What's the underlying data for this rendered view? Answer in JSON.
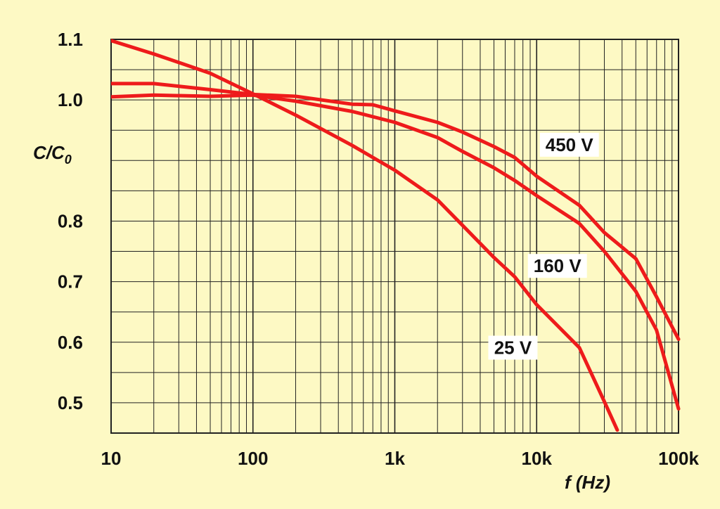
{
  "chart_data": {
    "type": "line",
    "xscale": "log",
    "xlim": [
      10,
      100000
    ],
    "ylim": [
      0.45,
      1.1
    ],
    "grid": true,
    "xlabel": "f (Hz)",
    "ylabel": "C/C",
    "ylabel_subscript": "0",
    "x_ticks": [
      {
        "value": 10,
        "label": "10"
      },
      {
        "value": 100,
        "label": "100"
      },
      {
        "value": 1000,
        "label": "1k"
      },
      {
        "value": 10000,
        "label": "10k"
      },
      {
        "value": 100000,
        "label": "100k"
      }
    ],
    "y_ticks": [
      {
        "value": 1.1,
        "label": "1.1"
      },
      {
        "value": 1.0,
        "label": "1.0"
      },
      {
        "value": 0.8,
        "label": "0.8"
      },
      {
        "value": 0.7,
        "label": "0.7"
      },
      {
        "value": 0.6,
        "label": "0.6"
      },
      {
        "value": 0.5,
        "label": "0.5"
      }
    ],
    "series": [
      {
        "name": "450 V",
        "color": "#ee1b1b",
        "x": [
          10,
          20,
          50,
          100,
          200,
          500,
          700,
          1000,
          2000,
          3000,
          5000,
          7000,
          10000,
          20000,
          30000,
          50000,
          70000,
          100000
        ],
        "y": [
          1.027,
          1.027,
          1.017,
          1.009,
          1.006,
          0.993,
          0.992,
          0.982,
          0.963,
          0.947,
          0.923,
          0.905,
          0.874,
          0.826,
          0.781,
          0.738,
          0.675,
          0.605
        ]
      },
      {
        "name": "160 V",
        "color": "#ee1b1b",
        "x": [
          10,
          20,
          50,
          100,
          200,
          500,
          1000,
          2000,
          3000,
          5000,
          7000,
          10000,
          20000,
          30000,
          50000,
          70000,
          100000
        ],
        "y": [
          1.005,
          1.008,
          1.006,
          1.008,
          0.998,
          0.981,
          0.963,
          0.938,
          0.915,
          0.888,
          0.867,
          0.842,
          0.796,
          0.75,
          0.684,
          0.62,
          0.49
        ]
      },
      {
        "name": "25 V",
        "color": "#ee1b1b",
        "x": [
          10,
          20,
          50,
          100,
          200,
          500,
          1000,
          2000,
          3000,
          5000,
          7000,
          10000,
          20000,
          30000,
          37000
        ],
        "y": [
          1.098,
          1.076,
          1.044,
          1.01,
          0.975,
          0.925,
          0.884,
          0.835,
          0.793,
          0.74,
          0.708,
          0.662,
          0.591,
          0.502,
          0.455
        ]
      }
    ],
    "annotations": [
      {
        "text": "450 V",
        "series": "450 V",
        "x": 17000,
        "y": 0.926
      },
      {
        "text": "160 V",
        "series": "160 V",
        "x": 14000,
        "y": 0.726
      },
      {
        "text": "25 V",
        "series": "25 V",
        "x": 6800,
        "y": 0.591
      }
    ]
  }
}
